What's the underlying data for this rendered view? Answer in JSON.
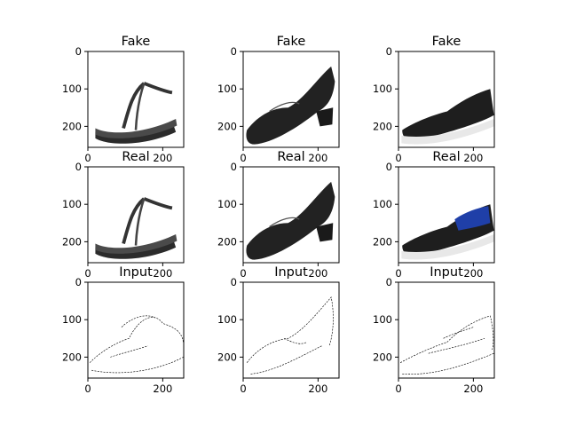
{
  "figure": {
    "columns": 3,
    "rows": [
      {
        "title": "Fake"
      },
      {
        "title": "Real"
      },
      {
        "title": "Input"
      }
    ],
    "x_ticks": [
      "0",
      "200"
    ],
    "y_ticks": [
      "0",
      "100",
      "200"
    ],
    "image_subjects": [
      [
        "flip-flop sandal",
        "black slip-on heel shoe",
        "black slip-on sneaker with white sole"
      ],
      [
        "flip-flop sandal",
        "black slip-on heel shoe",
        "black and blue slip-on sneaker"
      ],
      [
        "shoe edge sketch",
        "slip-on shoe edge sketch",
        "sneaker edge sketch"
      ]
    ],
    "colors": {
      "shoe_black": "#2b2b2b",
      "sole_white": "#e8e8e8",
      "accent_blue": "#1f3fa8"
    }
  }
}
